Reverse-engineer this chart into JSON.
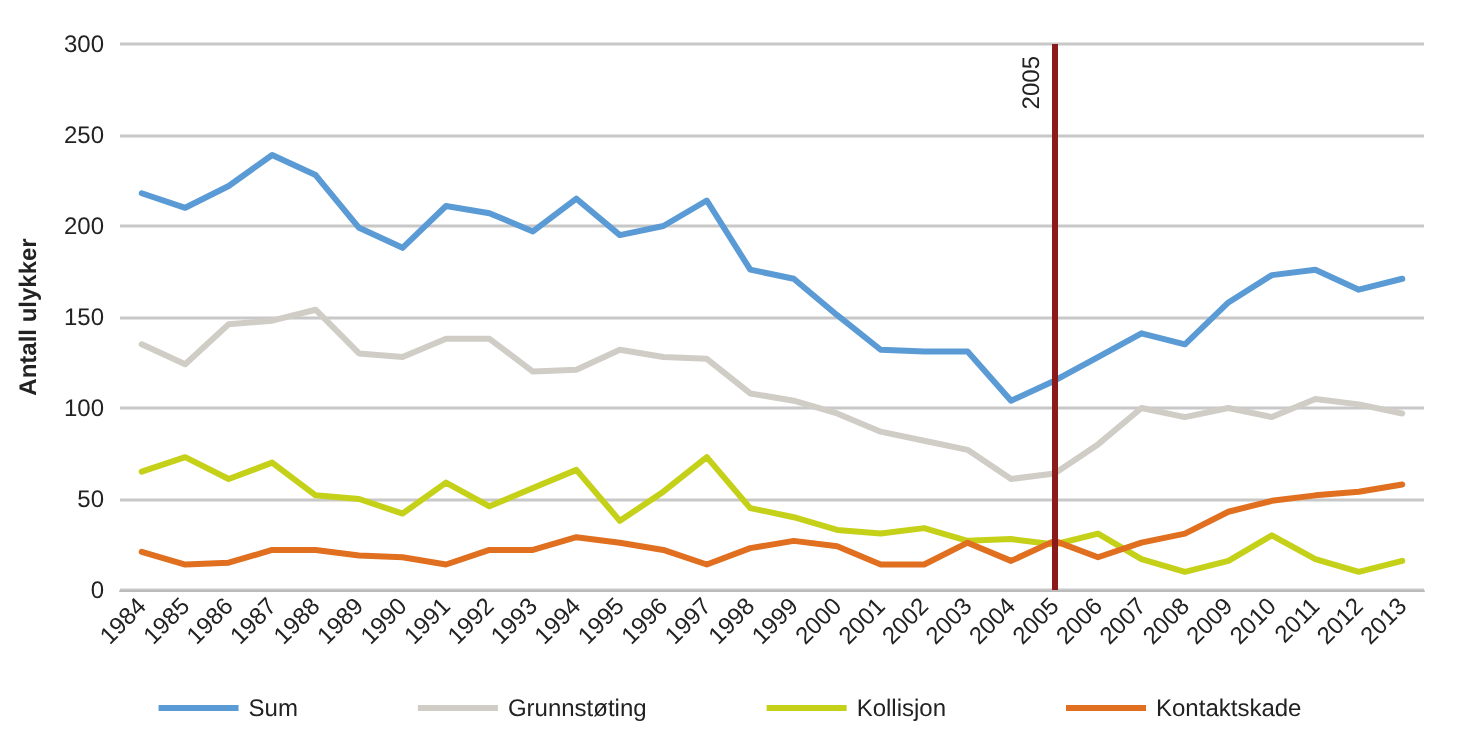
{
  "chart_data": {
    "type": "line",
    "ylabel": "Antall ulykker",
    "categories": [
      "1984",
      "1985",
      "1986",
      "1987",
      "1988",
      "1989",
      "1990",
      "1991",
      "1992",
      "1993",
      "1994",
      "1995",
      "1996",
      "1997",
      "1998",
      "1999",
      "2000",
      "2001",
      "2002",
      "2003",
      "2004",
      "2005",
      "2006",
      "2007",
      "2008",
      "2009",
      "2010",
      "2011",
      "2012",
      "2013"
    ],
    "series": [
      {
        "name": "Sum",
        "color": "#5b9bd5",
        "values": [
          218,
          210,
          222,
          239,
          228,
          199,
          188,
          211,
          207,
          197,
          215,
          195,
          200,
          214,
          176,
          171,
          151,
          132,
          131,
          131,
          104,
          115,
          128,
          141,
          135,
          158,
          173,
          176,
          165,
          171
        ]
      },
      {
        "name": "Grunnstøting",
        "color": "#d0cdc6",
        "values": [
          135,
          124,
          146,
          148,
          154,
          130,
          128,
          138,
          138,
          120,
          121,
          132,
          128,
          127,
          108,
          104,
          97,
          87,
          82,
          77,
          61,
          64,
          80,
          100,
          95,
          100,
          95,
          105,
          102,
          97
        ]
      },
      {
        "name": "Kollisjon",
        "color": "#c4d118",
        "values": [
          65,
          73,
          61,
          70,
          52,
          50,
          42,
          59,
          46,
          56,
          66,
          38,
          54,
          73,
          45,
          40,
          33,
          31,
          34,
          27,
          28,
          25,
          31,
          17,
          10,
          16,
          30,
          17,
          10,
          16
        ]
      },
      {
        "name": "Kontaktskade",
        "color": "#e07020",
        "values": [
          21,
          14,
          15,
          22,
          22,
          19,
          18,
          14,
          22,
          22,
          29,
          26,
          22,
          14,
          23,
          27,
          24,
          14,
          14,
          26,
          16,
          27,
          18,
          26,
          31,
          43,
          49,
          52,
          54,
          58
        ]
      }
    ],
    "ylim": [
      0,
      300
    ],
    "yticks": [
      0,
      50,
      100,
      150,
      200,
      250,
      300
    ],
    "grid": "y",
    "legend": "bottom",
    "marker": "none",
    "line_style": "solid",
    "ref_lines": [
      {
        "axis": "x",
        "value": "2005",
        "label": "2005",
        "color": "#8b1a1a"
      }
    ]
  }
}
